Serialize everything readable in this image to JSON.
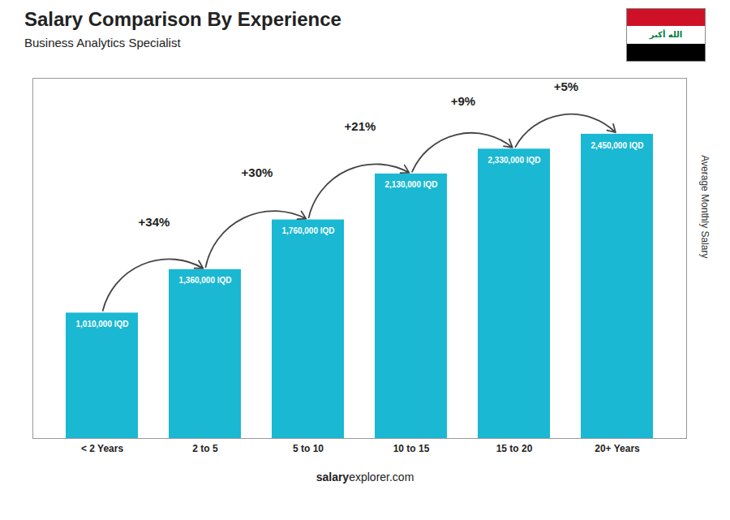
{
  "chart_data": {
    "type": "bar",
    "title": "Salary Comparison By Experience",
    "subtitle": "Business Analytics Specialist",
    "categories": [
      "< 2 Years",
      "2 to 5",
      "5 to 10",
      "10 to 15",
      "15 to 20",
      "20+ Years"
    ],
    "values": [
      1010000,
      1360000,
      1760000,
      2130000,
      2330000,
      2450000
    ],
    "value_labels": [
      "1,010,000 IQD",
      "1,360,000 IQD",
      "1,760,000 IQD",
      "2,130,000 IQD",
      "2,330,000 IQD",
      "2,450,000 IQD"
    ],
    "data_labels": true,
    "color": "#1ab8d2",
    "ylabel": "Average Monthly Salary",
    "ylim": [
      0,
      2900000
    ],
    "tick_labels": "x",
    "grid": false,
    "annotations": [
      "+34%",
      "+30%",
      "+21%",
      "+9%",
      "+5%"
    ],
    "caption": [
      "salary",
      "explorer.com"
    ],
    "flag_text": "الله أكبر"
  }
}
